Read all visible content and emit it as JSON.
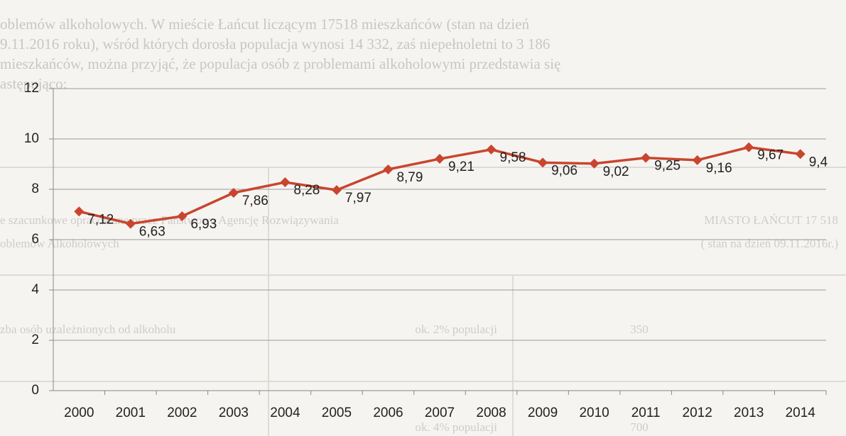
{
  "chart_data": {
    "type": "line",
    "categories": [
      "2000",
      "2001",
      "2002",
      "2003",
      "2004",
      "2005",
      "2006",
      "2007",
      "2008",
      "2009",
      "2010",
      "2011",
      "2012",
      "2013",
      "2014"
    ],
    "series": [
      {
        "color": "#c9452e",
        "values": [
          7.12,
          6.63,
          6.93,
          7.86,
          8.28,
          7.97,
          8.79,
          9.21,
          9.58,
          9.06,
          9.02,
          9.25,
          9.16,
          9.67,
          9.4
        ],
        "value_labels": [
          "7,12",
          "6,63",
          "6,93",
          "7,86",
          "8,28",
          "7,97",
          "8,79",
          "9,21",
          "9,58",
          "9,06",
          "9,02",
          "9,25",
          "9,16",
          "9,67",
          "9,4"
        ]
      }
    ],
    "ylim": [
      0,
      12
    ],
    "yticks": [
      0,
      2,
      4,
      6,
      8,
      10,
      12
    ],
    "grid": true
  },
  "document": {
    "paragraph": [
      "oblemów alkoholowych. W mieście Łańcut liczącym 17518 mieszkańców (stan na dzień",
      "9.11.2016 roku), wśród których dorosła populacja wynosi 14 332, zaś niepełnoletni to 3 186",
      "mieszkańców, można przyjąć, że populacja osób z problemami alkoholowymi przedstawia się",
      "astępująco:"
    ],
    "table": [
      "e szacunkowe opracowane przez Państwową Agencję Rozwiązywania",
      "oblemów Alkoholowych",
      "MIASTO ŁAŃCUT 17 518",
      "( stan na dzień 09.11.2016r.)",
      "zba osób uzależnionych od alkoholu",
      "ok. 2% populacji",
      "350",
      "ok. 4% populacji",
      "700"
    ]
  }
}
